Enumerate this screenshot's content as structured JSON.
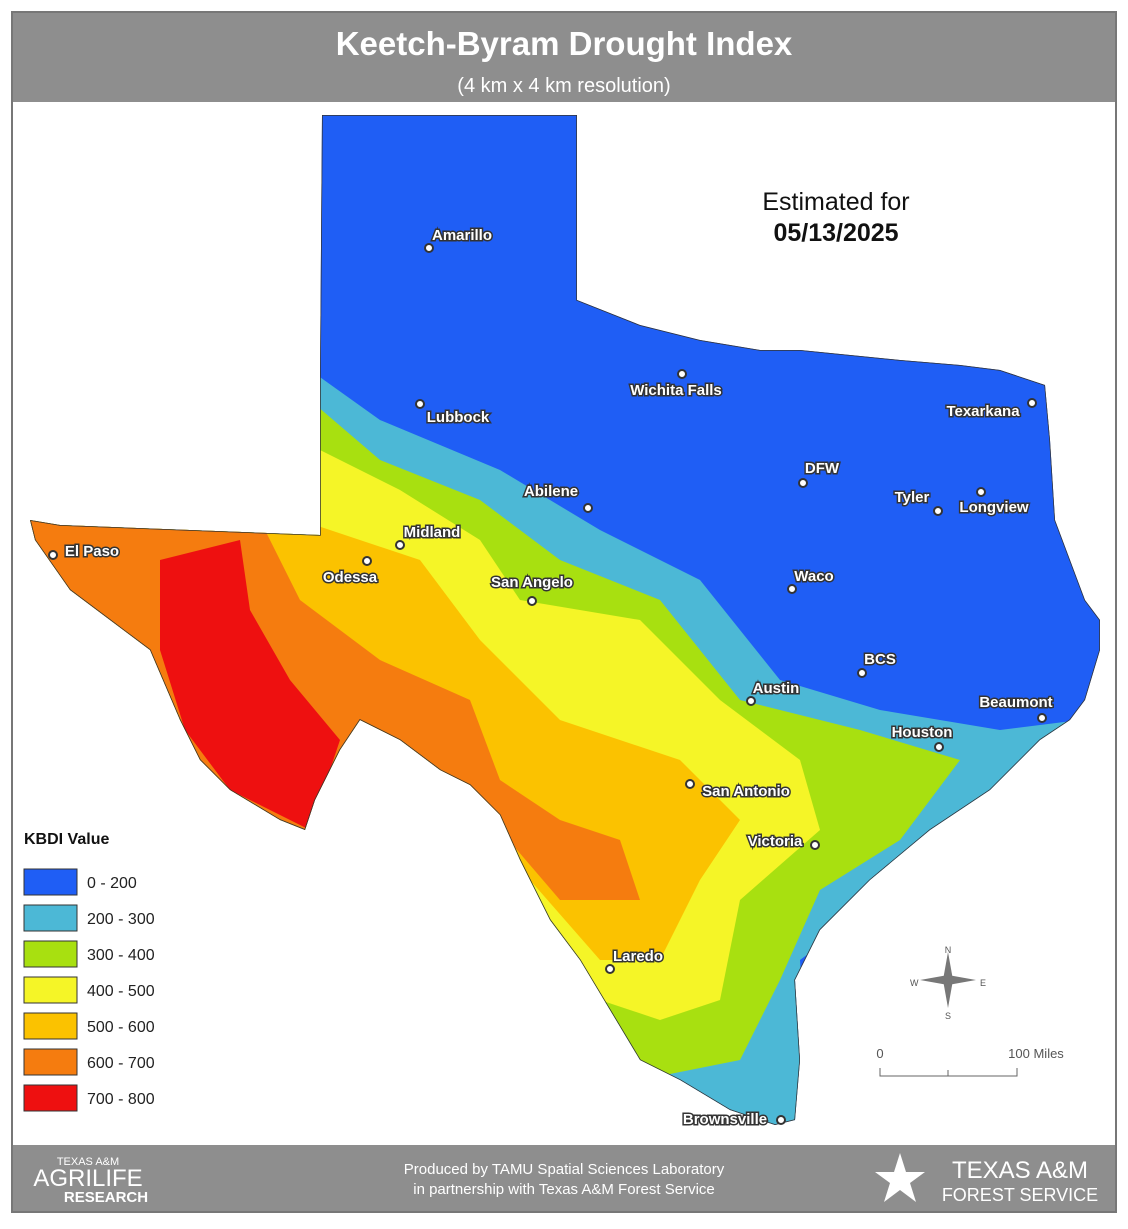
{
  "header": {
    "title": "Keetch-Byram Drought Index",
    "subtitle": "(4 km x 4 km resolution)"
  },
  "date_note": {
    "label": "Estimated for",
    "date": "05/13/2025"
  },
  "cities": [
    "Amarillo",
    "Lubbock",
    "Wichita Falls",
    "Texarkana",
    "DFW",
    "Tyler",
    "Longview",
    "Abilene",
    "Midland",
    "Odessa",
    "El Paso",
    "San Angelo",
    "Waco",
    "BCS",
    "Austin",
    "Beaumont",
    "Houston",
    "San Antonio",
    "Victoria",
    "Laredo",
    "Brownsville"
  ],
  "legend": {
    "title": "KBDI Value",
    "items": [
      {
        "label": "0 - 200",
        "color": "#1f5ef5"
      },
      {
        "label": "200 - 300",
        "color": "#4cb8d6"
      },
      {
        "label": "300 - 400",
        "color": "#a8e010"
      },
      {
        "label": "400 - 500",
        "color": "#f5f527"
      },
      {
        "label": "500 - 600",
        "color": "#fbc200"
      },
      {
        "label": "600 - 700",
        "color": "#f57c0f"
      },
      {
        "label": "700 - 800",
        "color": "#ee1010"
      }
    ]
  },
  "compass": {
    "n": "N",
    "s": "S",
    "e": "E",
    "w": "W"
  },
  "scale": {
    "start": "0",
    "end": "100 Miles"
  },
  "footer": {
    "credit_line1": "Produced by TAMU Spatial Sciences Laboratory",
    "credit_line2": "in partnership with Texas A&M Forest Service",
    "left_logo": [
      "TEXAS A&M",
      "AGRILIFE",
      "RESEARCH"
    ],
    "right_logo": [
      "TEXAS A&M",
      "FOREST SERVICE"
    ]
  }
}
